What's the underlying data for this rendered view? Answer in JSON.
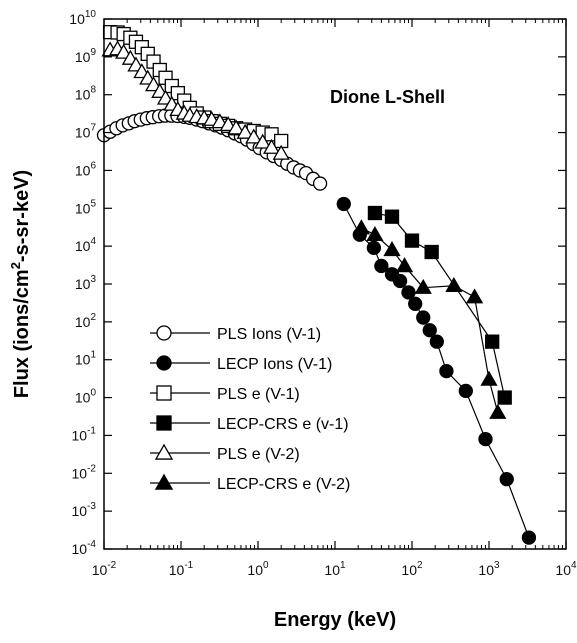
{
  "chart_data": {
    "type": "scatter",
    "title": "",
    "annotation": "Dione L-Shell",
    "xlabel": "Energy (keV)",
    "ylabel_parts": [
      "Flux (ions/cm",
      "2",
      "-s-sr-keV)"
    ],
    "x_scale": "log",
    "y_scale": "log",
    "xlim": [
      0.01,
      10000
    ],
    "ylim": [
      0.0001,
      10000000000
    ],
    "x_ticks": [
      {
        "value": 0.01,
        "base": "10",
        "exp": "-2"
      },
      {
        "value": 0.1,
        "base": "10",
        "exp": "-1"
      },
      {
        "value": 1,
        "base": "10",
        "exp": "0"
      },
      {
        "value": 10,
        "base": "10",
        "exp": "1"
      },
      {
        "value": 100,
        "base": "10",
        "exp": "2"
      },
      {
        "value": 1000,
        "base": "10",
        "exp": "3"
      },
      {
        "value": 10000,
        "base": "10",
        "exp": "4"
      }
    ],
    "y_ticks": [
      {
        "value": 0.0001,
        "base": "10",
        "exp": "-4"
      },
      {
        "value": 0.001,
        "base": "10",
        "exp": "-3"
      },
      {
        "value": 0.01,
        "base": "10",
        "exp": "-2"
      },
      {
        "value": 0.1,
        "base": "10",
        "exp": "-1"
      },
      {
        "value": 1,
        "base": "10",
        "exp": "0"
      },
      {
        "value": 10,
        "base": "10",
        "exp": "1"
      },
      {
        "value": 100,
        "base": "10",
        "exp": "2"
      },
      {
        "value": 1000,
        "base": "10",
        "exp": "3"
      },
      {
        "value": 10000,
        "base": "10",
        "exp": "4"
      },
      {
        "value": 100000,
        "base": "10",
        "exp": "5"
      },
      {
        "value": 1000000,
        "base": "10",
        "exp": "6"
      },
      {
        "value": 10000000,
        "base": "10",
        "exp": "7"
      },
      {
        "value": 100000000,
        "base": "10",
        "exp": "8"
      },
      {
        "value": 1000000000,
        "base": "10",
        "exp": "9"
      },
      {
        "value": 10000000000,
        "base": "10",
        "exp": "10"
      }
    ],
    "grid": false,
    "legend_position": "bottom-left",
    "series": [
      {
        "name": "PLS Ions (V-1)",
        "marker": "circle",
        "filled": false,
        "points": [
          [
            0.01,
            8500000.0
          ],
          [
            0.012,
            10500000.0
          ],
          [
            0.0145,
            13000000.0
          ],
          [
            0.0175,
            15500000.0
          ],
          [
            0.021,
            17500000.0
          ],
          [
            0.025,
            20000000.0
          ],
          [
            0.03,
            22000000.0
          ],
          [
            0.036,
            24000000.0
          ],
          [
            0.043,
            25500000.0
          ],
          [
            0.052,
            27000000.0
          ],
          [
            0.062,
            28000000.0
          ],
          [
            0.075,
            28000000.0
          ],
          [
            0.09,
            27500000.0
          ],
          [
            0.11,
            26000000.0
          ],
          [
            0.13,
            24500000.0
          ],
          [
            0.16,
            22000000.0
          ],
          [
            0.19,
            20000000.0
          ],
          [
            0.23,
            17500000.0
          ],
          [
            0.28,
            15500000.0
          ],
          [
            0.34,
            13500000.0
          ],
          [
            0.41,
            11500000.0
          ],
          [
            0.5,
            9500000.0
          ],
          [
            0.6,
            8000000.0
          ],
          [
            0.72,
            6500000.0
          ],
          [
            0.87,
            5000000.0
          ],
          [
            1.05,
            3900000.0
          ],
          [
            1.3,
            3000000.0
          ],
          [
            1.6,
            2400000.0
          ],
          [
            2.0,
            1900000.0
          ],
          [
            2.4,
            1500000.0
          ],
          [
            2.9,
            1200000.0
          ],
          [
            3.5,
            1000000.0
          ],
          [
            4.2,
            850000.0
          ],
          [
            5.2,
            600000.0
          ],
          [
            6.4,
            450000.0
          ]
        ]
      },
      {
        "name": "LECP Ions (V-1)",
        "marker": "circle",
        "filled": true,
        "points": [
          [
            13,
            130000.0
          ],
          [
            21,
            20000.0
          ],
          [
            32,
            9000.0
          ],
          [
            40,
            3000.0
          ],
          [
            55,
            1800.0
          ],
          [
            70,
            1200.0
          ],
          [
            90,
            600
          ],
          [
            110,
            300
          ],
          [
            140,
            130
          ],
          [
            170,
            60
          ],
          [
            210,
            30
          ],
          [
            280,
            5
          ],
          [
            500,
            1.5
          ],
          [
            900,
            0.08
          ],
          [
            1700,
            0.007
          ],
          [
            3300,
            0.0002
          ]
        ]
      },
      {
        "name": "PLS e (V-1)",
        "marker": "square",
        "filled": false,
        "points": [
          [
            0.012,
            4500000000.0
          ],
          [
            0.015,
            4400000000.0
          ],
          [
            0.018,
            4000000000.0
          ],
          [
            0.022,
            3200000000.0
          ],
          [
            0.026,
            2500000000.0
          ],
          [
            0.031,
            1800000000.0
          ],
          [
            0.037,
            1200000000.0
          ],
          [
            0.044,
            750000000.0
          ],
          [
            0.053,
            450000000.0
          ],
          [
            0.063,
            280000000.0
          ],
          [
            0.076,
            170000000.0
          ],
          [
            0.091,
            110000000.0
          ],
          [
            0.11,
            70000000.0
          ],
          [
            0.13,
            45000000.0
          ],
          [
            0.16,
            32000000.0
          ],
          [
            0.2,
            25000000.0
          ],
          [
            0.25,
            20000000.0
          ],
          [
            0.32,
            17000000.0
          ],
          [
            0.41,
            15000000.0
          ],
          [
            0.52,
            13000000.0
          ],
          [
            0.68,
            12000000.0
          ],
          [
            0.88,
            11000000.0
          ],
          [
            1.15,
            10000000.0
          ],
          [
            1.5,
            9000000.0
          ],
          [
            2.0,
            6000000.0
          ]
        ]
      },
      {
        "name": "LECP-CRS e (v-1)",
        "marker": "square",
        "filled": true,
        "points": [
          [
            33,
            75000.0
          ],
          [
            55,
            60000.0
          ],
          [
            100,
            14000.0
          ],
          [
            180,
            7000.0
          ],
          [
            1100,
            30
          ],
          [
            1600,
            1.0
          ]
        ]
      },
      {
        "name": "PLS e  (V-2)",
        "marker": "triangle",
        "filled": false,
        "points": [
          [
            0.012,
            1500000000.0
          ],
          [
            0.015,
            1600000000.0
          ],
          [
            0.018,
            1300000000.0
          ],
          [
            0.022,
            900000000.0
          ],
          [
            0.026,
            600000000.0
          ],
          [
            0.031,
            400000000.0
          ],
          [
            0.037,
            270000000.0
          ],
          [
            0.044,
            180000000.0
          ],
          [
            0.053,
            120000000.0
          ],
          [
            0.063,
            80000000.0
          ],
          [
            0.076,
            55000000.0
          ],
          [
            0.091,
            40000000.0
          ],
          [
            0.11,
            32000000.0
          ],
          [
            0.13,
            28000000.0
          ],
          [
            0.16,
            26000000.0
          ],
          [
            0.2,
            24000000.0
          ],
          [
            0.25,
            22000000.0
          ],
          [
            0.32,
            19000000.0
          ],
          [
            0.41,
            16000000.0
          ],
          [
            0.52,
            13000000.0
          ],
          [
            0.68,
            10000000.0
          ],
          [
            0.88,
            7500000.0
          ],
          [
            1.15,
            5500000.0
          ],
          [
            1.5,
            4000000.0
          ],
          [
            2.0,
            2800000.0
          ]
        ]
      },
      {
        "name": "LECP-CRS e (V-2)",
        "marker": "triangle",
        "filled": true,
        "points": [
          [
            22,
            30000.0
          ],
          [
            33,
            20000.0
          ],
          [
            55,
            8000.0
          ],
          [
            80,
            3000.0
          ],
          [
            140,
            800
          ],
          [
            350,
            900
          ],
          [
            650,
            450
          ],
          [
            1000,
            3
          ],
          [
            1300,
            0.4
          ]
        ]
      }
    ]
  }
}
